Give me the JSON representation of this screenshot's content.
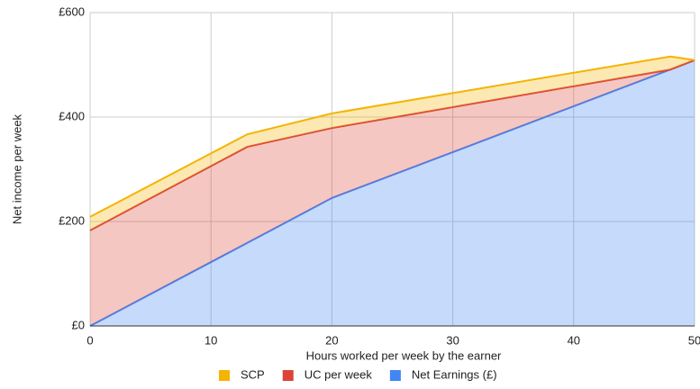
{
  "chart_data": {
    "type": "stacked-area",
    "x_label": "Hours worked per week by the earner",
    "y_label": "Net income per week",
    "x": [
      0,
      13,
      20,
      48,
      50
    ],
    "series": [
      {
        "name": "SCP",
        "color": "#f4b400",
        "values": [
          26,
          24,
          28,
          25,
          0
        ]
      },
      {
        "name": "UC per week",
        "color": "#db4437",
        "values": [
          183,
          184,
          134,
          0,
          0
        ]
      },
      {
        "name": "Net Earnings (£)",
        "color": "#4285f4",
        "values": [
          0,
          159,
          245,
          491,
          509
        ]
      }
    ],
    "xlim": [
      0,
      50
    ],
    "xticks": [
      0,
      10,
      20,
      30,
      40,
      50
    ],
    "ylim": [
      0,
      600
    ],
    "yticks": [
      {
        "value": 0,
        "label": "£0"
      },
      {
        "value": 200,
        "label": "£200"
      },
      {
        "value": 400,
        "label": "£400"
      },
      {
        "value": 600,
        "label": "£600"
      }
    ],
    "grid": true,
    "legend": "bottom"
  }
}
